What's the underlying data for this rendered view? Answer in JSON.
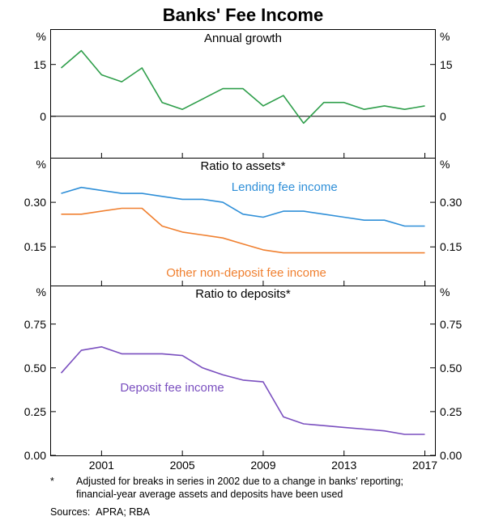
{
  "title": "Banks' Fee Income",
  "colors": {
    "annual_growth": "#2e9e4a",
    "lending": "#2f8fd8",
    "other": "#f08030",
    "deposit": "#7a4fbf",
    "axis": "#000000",
    "grid": "#000000",
    "bg": "#ffffff"
  },
  "line_width": 1.6,
  "years": [
    1999,
    2000,
    2001,
    2002,
    2003,
    2004,
    2005,
    2006,
    2007,
    2008,
    2009,
    2010,
    2011,
    2012,
    2013,
    2014,
    2015,
    2016,
    2017
  ],
  "xticks": [
    2001,
    2005,
    2009,
    2013,
    2017
  ],
  "panels": {
    "p1": {
      "subtitle": "Annual growth",
      "ylim": [
        -12,
        25
      ],
      "yticks": [
        0,
        15
      ],
      "data": {
        "annual_growth": [
          14,
          19,
          12,
          10,
          14,
          4,
          2,
          5,
          8,
          8,
          3,
          6,
          -2,
          4,
          4,
          2,
          3,
          2,
          3
        ]
      },
      "zero_line": true
    },
    "p2": {
      "subtitle": "Ratio to assets*",
      "ylim": [
        0.02,
        0.45
      ],
      "yticks": [
        0.15,
        0.3
      ],
      "data": {
        "lending": [
          0.33,
          0.35,
          0.34,
          0.33,
          0.33,
          0.32,
          0.31,
          0.31,
          0.3,
          0.26,
          0.25,
          0.27,
          0.27,
          0.26,
          0.25,
          0.24,
          0.24,
          0.22,
          0.22
        ],
        "other": [
          0.26,
          0.26,
          0.27,
          0.28,
          0.28,
          0.22,
          0.2,
          0.19,
          0.18,
          0.16,
          0.14,
          0.13,
          0.13,
          0.13,
          0.13,
          0.13,
          0.13,
          0.13,
          0.13
        ]
      },
      "series_labels": {
        "lending": {
          "text": "Lending fee income",
          "x": 0.47,
          "y": 0.23,
          "color_key": "lending"
        },
        "other": {
          "text": "Other non-deposit fee income",
          "x": 0.3,
          "y": 0.9,
          "color_key": "other"
        }
      }
    },
    "p3": {
      "subtitle": "Ratio to deposits*",
      "ylim": [
        0.0,
        0.97
      ],
      "yticks": [
        0.0,
        0.25,
        0.5,
        0.75
      ],
      "data": {
        "deposit": [
          0.47,
          0.6,
          0.62,
          0.58,
          0.58,
          0.58,
          0.57,
          0.5,
          0.46,
          0.43,
          0.42,
          0.22,
          0.18,
          0.17,
          0.16,
          0.15,
          0.14,
          0.12,
          0.12
        ]
      },
      "series_labels": {
        "deposit": {
          "text": "Deposit fee income",
          "x": 0.18,
          "y": 0.6,
          "color_key": "deposit"
        }
      }
    }
  },
  "footnote_star": "*",
  "footnote": "Adjusted for breaks in series in 2002 due to a change in banks' reporting; financial-year average assets and deposits have been used",
  "sources_label": "Sources:",
  "sources": "APRA; RBA"
}
